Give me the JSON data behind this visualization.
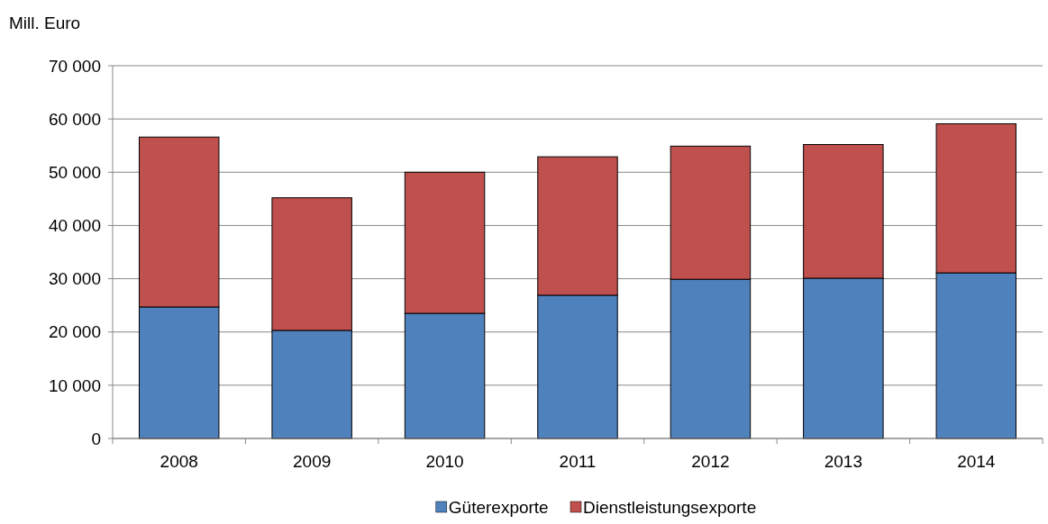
{
  "chart_data": {
    "type": "bar",
    "stacked": true,
    "ylabel": "Mill. Euro",
    "categories": [
      "2008",
      "2009",
      "2010",
      "2011",
      "2012",
      "2013",
      "2014"
    ],
    "series": [
      {
        "name": "Güterexporte",
        "color": "#4f81bd",
        "values": [
          24700,
          20300,
          23500,
          26900,
          29900,
          30100,
          31100
        ]
      },
      {
        "name": "Dienstleistungsexporte",
        "color": "#c0504d",
        "values": [
          31900,
          24900,
          26500,
          26000,
          25000,
          25100,
          28000
        ]
      }
    ],
    "ylim": [
      0,
      70000
    ],
    "yticks": [
      {
        "value": 0,
        "label": "0"
      },
      {
        "value": 10000,
        "label": "10 000"
      },
      {
        "value": 20000,
        "label": "20 000"
      },
      {
        "value": 30000,
        "label": "30 000"
      },
      {
        "value": 40000,
        "label": "40 000"
      },
      {
        "value": 50000,
        "label": "50 000"
      },
      {
        "value": 60000,
        "label": "60 000"
      },
      {
        "value": 70000,
        "label": "70 000"
      }
    ],
    "grid": "y",
    "legend": "bottom"
  }
}
